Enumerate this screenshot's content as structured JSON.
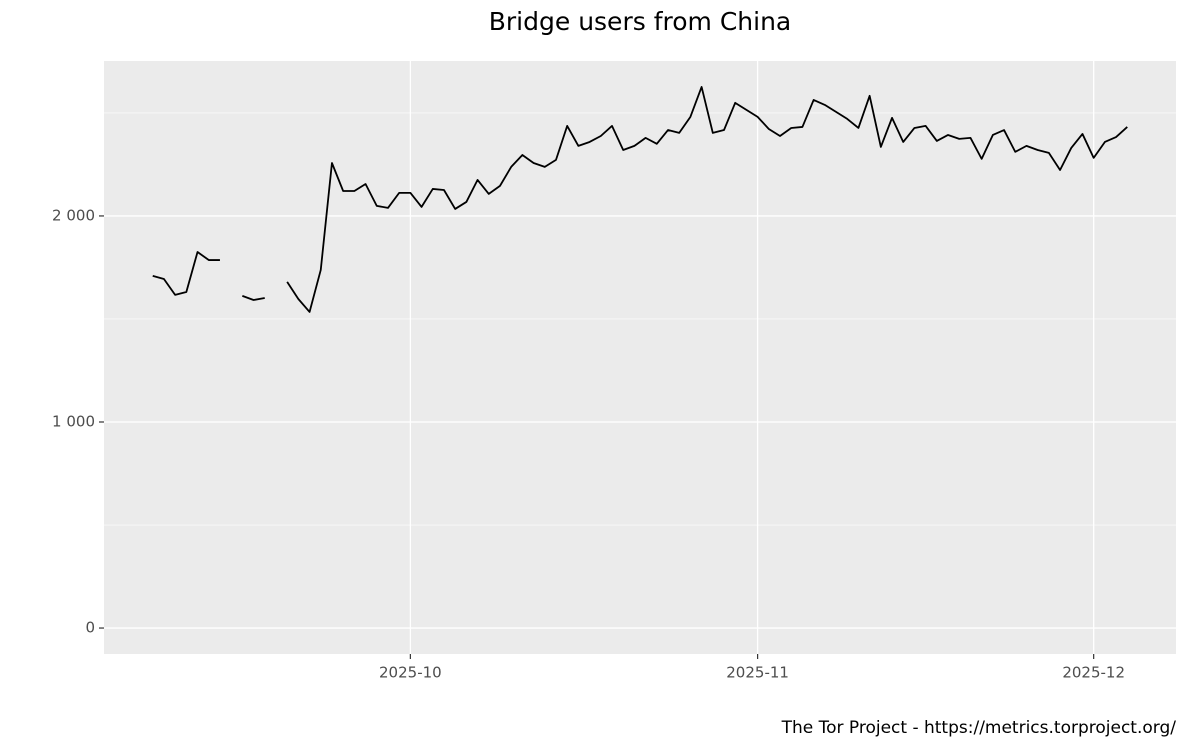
{
  "chart_data": {
    "type": "line",
    "title": "Bridge users from China",
    "caption": "The Tor Project - https://metrics.torproject.org/",
    "categories": [
      null,
      null,
      null,
      null,
      null,
      null,
      null,
      null,
      null,
      null,
      null,
      null,
      null,
      null,
      null,
      null,
      null,
      null,
      null,
      null,
      null,
      null,
      null,
      "2025-10",
      null,
      null,
      null,
      null,
      null,
      null,
      null,
      null,
      null,
      null,
      null,
      null,
      null,
      null,
      null,
      null,
      null,
      null,
      null,
      null,
      null,
      null,
      null,
      null,
      null,
      null,
      null,
      null,
      null,
      null,
      "2025-11",
      null,
      null,
      null,
      null,
      null,
      null,
      null,
      null,
      null,
      null,
      null,
      null,
      null,
      null,
      null,
      null,
      null,
      null,
      null,
      null,
      null,
      null,
      null,
      null,
      null,
      null,
      null,
      null,
      null,
      "2025-12",
      null,
      null,
      null
    ],
    "series": [
      {
        "color": "#000000",
        "values": [
          1709,
          1694,
          1617,
          1631,
          1825,
          1786,
          1786,
          null,
          1612,
          1592,
          1602,
          null,
          1680,
          1597,
          1534,
          1738,
          2257,
          2121,
          2121,
          2155,
          2049,
          2039,
          2112,
          2112,
          2044,
          2131,
          2126,
          2034,
          2068,
          2175,
          2107,
          2146,
          2238,
          2296,
          2257,
          2238,
          2272,
          2437,
          2340,
          2359,
          2388,
          2437,
          2320,
          2340,
          2379,
          2350,
          2417,
          2403,
          2481,
          2626,
          2403,
          2417,
          2549,
          2515,
          2481,
          2422,
          2388,
          2427,
          2432,
          2563,
          2539,
          2505,
          2471,
          2427,
          2583,
          2335,
          2476,
          2359,
          2427,
          2437,
          2364,
          2393,
          2374,
          2379,
          2277,
          2393,
          2417,
          2311,
          2340,
          2320,
          2306,
          2223,
          2330,
          2398,
          2282,
          2359,
          2383,
          2432
        ]
      }
    ],
    "ylim": [
      -126,
      2752
    ],
    "yticks": [
      0,
      {
        "value": 1000,
        "label": "1 000"
      },
      {
        "value": 2000,
        "label": "2 000"
      }
    ],
    "minor_yticks": [
      500,
      1500,
      2500
    ],
    "grid": true
  }
}
